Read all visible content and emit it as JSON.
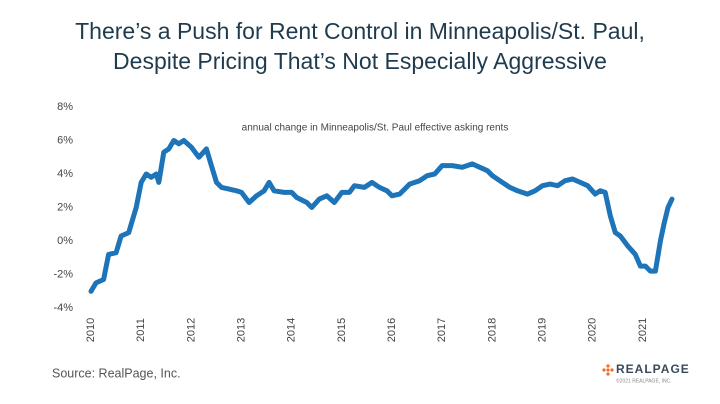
{
  "chart_data": {
    "type": "line",
    "title": [
      "There’s a Push for Rent Control in Minneapolis/St. Paul,",
      "Despite Pricing That’s Not Especially Aggressive"
    ],
    "annotation": "annual change in Minneapolis/St. Paul effective asking rents",
    "source": "Source: RealPage, Inc.",
    "logo": "REALPAGE",
    "copyright": "©2021 REALPAGE, INC.",
    "x": [
      2010.0,
      2010.1,
      2010.25,
      2010.35,
      2010.5,
      2010.6,
      2010.75,
      2010.9,
      2011.0,
      2011.1,
      2011.2,
      2011.3,
      2011.35,
      2011.45,
      2011.55,
      2011.65,
      2011.75,
      2011.85,
      2012.0,
      2012.15,
      2012.3,
      2012.4,
      2012.5,
      2012.6,
      2012.75,
      2012.9,
      2013.0,
      2013.15,
      2013.3,
      2013.45,
      2013.55,
      2013.65,
      2013.85,
      2014.0,
      2014.1,
      2014.3,
      2014.4,
      2014.55,
      2014.7,
      2014.85,
      2015.0,
      2015.15,
      2015.25,
      2015.45,
      2015.6,
      2015.75,
      2015.9,
      2016.0,
      2016.15,
      2016.35,
      2016.55,
      2016.7,
      2016.85,
      2017.0,
      2017.2,
      2017.4,
      2017.6,
      2017.75,
      2017.9,
      2018.0,
      2018.2,
      2018.35,
      2018.5,
      2018.7,
      2018.85,
      2019.0,
      2019.15,
      2019.3,
      2019.45,
      2019.6,
      2019.75,
      2019.9,
      2020.05,
      2020.15,
      2020.25,
      2020.35,
      2020.45,
      2020.55,
      2020.7,
      2020.85,
      2020.95,
      2021.05,
      2021.15,
      2021.25,
      2021.35,
      2021.42,
      2021.5,
      2021.58
    ],
    "series": [
      {
        "name": "annual change",
        "color": "#1e74b8",
        "values": [
          -3.0,
          -2.5,
          -2.3,
          -0.8,
          -0.7,
          0.3,
          0.5,
          2.0,
          3.5,
          4.0,
          3.8,
          4.0,
          3.5,
          5.3,
          5.5,
          6.0,
          5.8,
          6.0,
          5.6,
          5.0,
          5.5,
          4.5,
          3.5,
          3.2,
          3.1,
          3.0,
          2.9,
          2.3,
          2.7,
          3.0,
          3.5,
          3.0,
          2.9,
          2.9,
          2.6,
          2.3,
          2.0,
          2.5,
          2.7,
          2.3,
          2.9,
          2.9,
          3.3,
          3.2,
          3.5,
          3.2,
          3.0,
          2.7,
          2.8,
          3.4,
          3.6,
          3.9,
          4.0,
          4.5,
          4.5,
          4.4,
          4.6,
          4.4,
          4.2,
          3.9,
          3.5,
          3.2,
          3.0,
          2.8,
          3.0,
          3.3,
          3.4,
          3.3,
          3.6,
          3.7,
          3.5,
          3.3,
          2.8,
          3.0,
          2.9,
          1.5,
          0.5,
          0.3,
          -0.3,
          -0.8,
          -1.5,
          -1.5,
          -1.8,
          -1.8,
          0.0,
          1.0,
          2.0,
          2.5
        ]
      }
    ],
    "xlim": [
      2009.8,
      2021.8
    ],
    "xticks": [
      2010,
      2011,
      2012,
      2013,
      2014,
      2015,
      2016,
      2017,
      2018,
      2019,
      2020,
      2021
    ],
    "ylim": [
      -4,
      8
    ],
    "yticks": [
      {
        "value": -4,
        "label": "-4%"
      },
      {
        "value": -2,
        "label": "-2%"
      },
      {
        "value": 0,
        "label": "0%"
      },
      {
        "value": 2,
        "label": "2%"
      },
      {
        "value": 4,
        "label": "4%"
      },
      {
        "value": 6,
        "label": "6%"
      },
      {
        "value": 8,
        "label": "8%"
      }
    ],
    "grid": false
  }
}
